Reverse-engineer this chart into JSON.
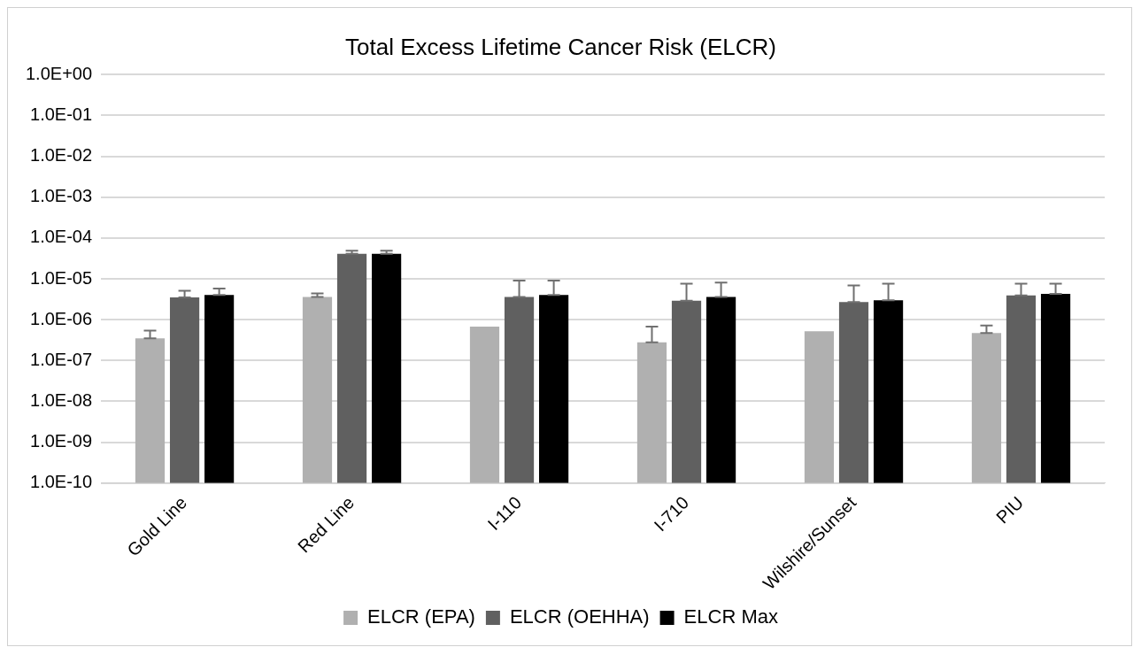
{
  "chart_data": {
    "type": "bar",
    "title": "Total Excess Lifetime Cancer Risk (ELCR)",
    "categories": [
      "Gold Line",
      "Red Line",
      "I-110",
      "I-710",
      "Wilshire/Sunset",
      "PIU"
    ],
    "series": [
      {
        "name": "ELCR (EPA)",
        "color": "#b0b0b0",
        "values": [
          3.5e-07,
          3.6e-06,
          6.8e-07,
          2.8e-07,
          5.2e-07,
          4.7e-07
        ],
        "errors": [
          [
            3.5e-07,
            5.4e-07
          ],
          [
            3.6e-06,
            4.4e-06
          ],
          null,
          [
            2.8e-07,
            6.8e-07
          ],
          null,
          [
            4.7e-07,
            7.2e-07
          ]
        ]
      },
      {
        "name": "ELCR (OEHHA)",
        "color": "#606060",
        "values": [
          3.5e-06,
          4.1e-05,
          3.6e-06,
          2.9e-06,
          2.7e-06,
          3.9e-06
        ],
        "errors": [
          [
            3.5e-06,
            5.1e-06
          ],
          [
            4.1e-05,
            4.9e-05
          ],
          [
            3.6e-06,
            9.1e-06
          ],
          [
            2.9e-06,
            7.6e-06
          ],
          [
            2.7e-06,
            6.9e-06
          ],
          [
            3.9e-06,
            7.6e-06
          ]
        ]
      },
      {
        "name": "ELCR Max",
        "color": "#000000",
        "values": [
          4e-06,
          4.1e-05,
          4e-06,
          3.6e-06,
          3e-06,
          4.3e-06
        ],
        "errors": [
          [
            4e-06,
            5.8e-06
          ],
          [
            4.1e-05,
            4.9e-05
          ],
          [
            4e-06,
            9.1e-06
          ],
          [
            3.6e-06,
            8.1e-06
          ],
          [
            3e-06,
            7.6e-06
          ],
          [
            4.3e-06,
            7.6e-06
          ]
        ]
      }
    ],
    "log": "y",
    "ylim": [
      1e-10,
      1
    ],
    "yticks": [
      {
        "value": 1e-10,
        "label": "1.0E-10"
      },
      {
        "value": 1e-09,
        "label": "1.0E-09"
      },
      {
        "value": 1e-08,
        "label": "1.0E-08"
      },
      {
        "value": 1e-07,
        "label": "1.0E-07"
      },
      {
        "value": 1e-06,
        "label": "1.0E-06"
      },
      {
        "value": 1e-05,
        "label": "1.0E-05"
      },
      {
        "value": 0.0001,
        "label": "1.0E-04"
      },
      {
        "value": 0.001,
        "label": "1.0E-03"
      },
      {
        "value": 0.01,
        "label": "1.0E-02"
      },
      {
        "value": 0.1,
        "label": "1.0E-01"
      },
      {
        "value": 1,
        "label": "1.0E+00"
      }
    ],
    "grid": "y",
    "legend": "bottom"
  }
}
